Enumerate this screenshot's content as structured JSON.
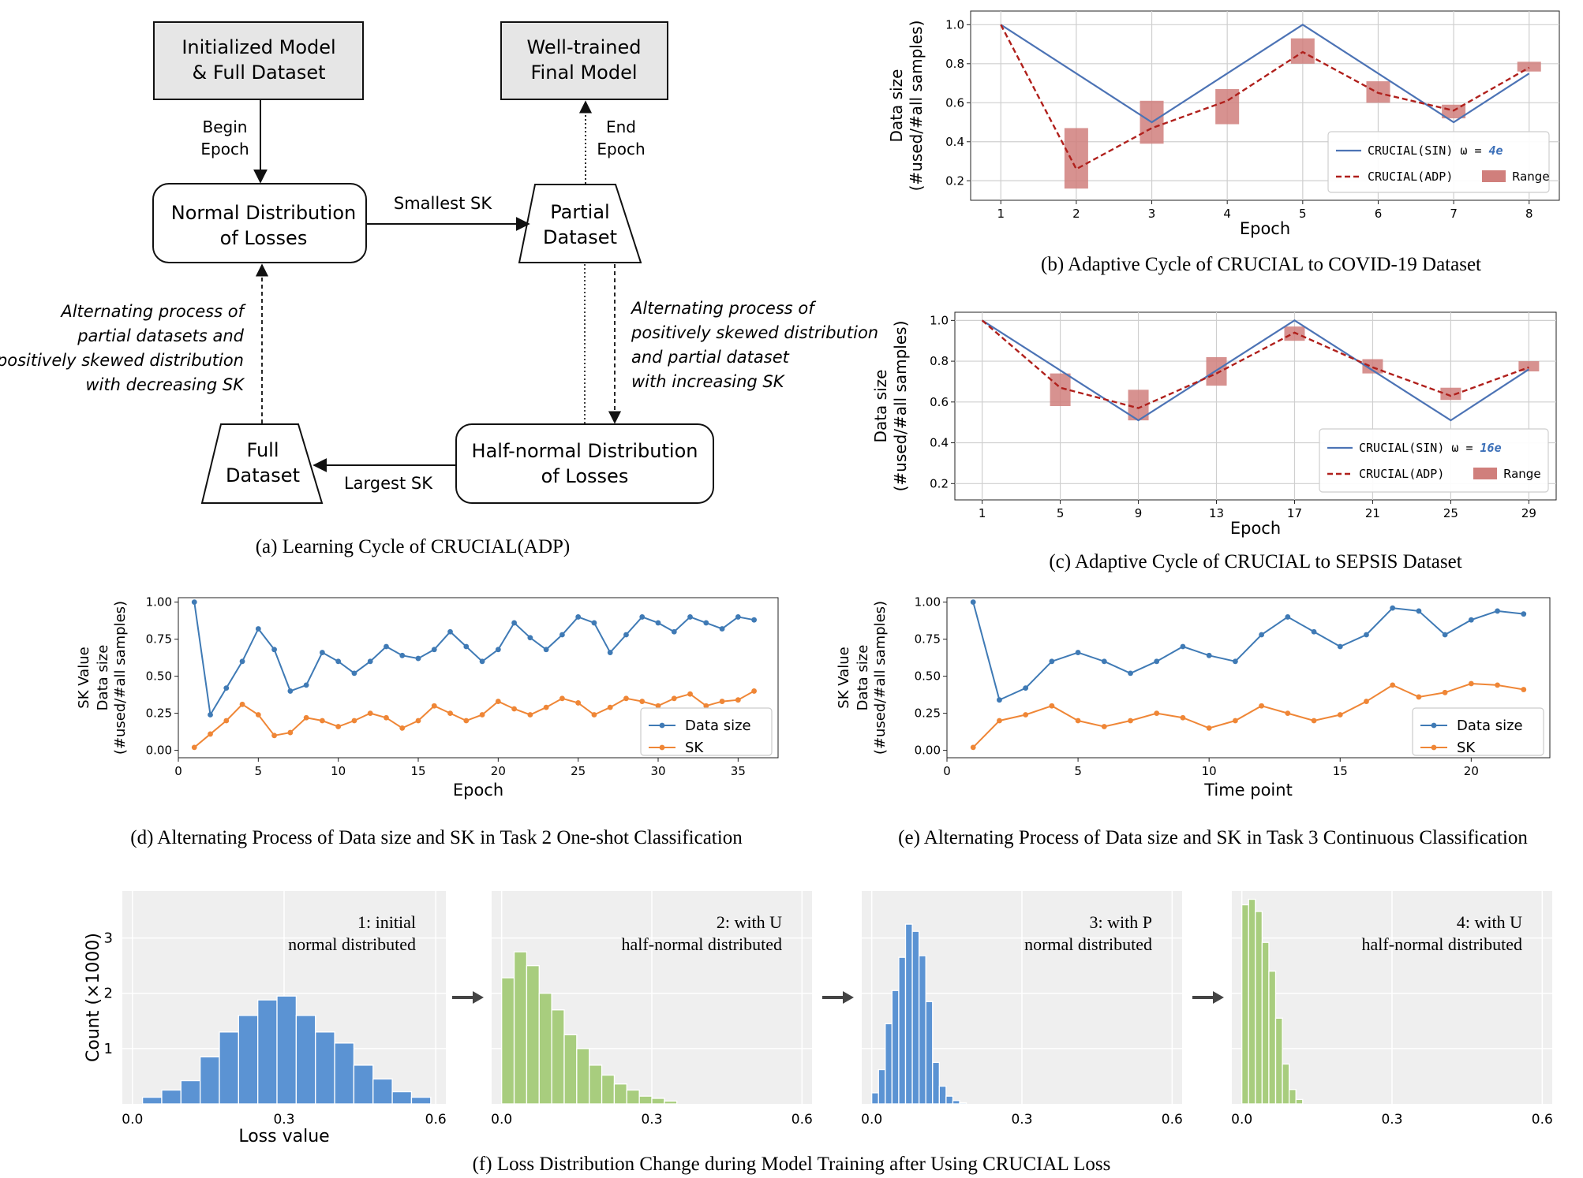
{
  "panel_a": {
    "boxes": {
      "init": [
        "Initialized Model",
        "& Full Dataset"
      ],
      "final": [
        "Well-trained",
        "Final Model"
      ],
      "normal": [
        "Normal Distribution",
        "of Losses"
      ],
      "partial": [
        "Partial",
        "Dataset"
      ],
      "full": [
        "Full",
        "Dataset"
      ],
      "half": [
        "Half-normal Distribution",
        "of Losses"
      ]
    },
    "labels": {
      "begin": [
        "Begin",
        "Epoch"
      ],
      "end": [
        "End",
        "Epoch"
      ],
      "smallest": "Smallest SK",
      "largest": "Largest SK",
      "left_alt": [
        "Alternating process of",
        "partial datasets and",
        "positively skewed distribution",
        "with decreasing SK"
      ],
      "right_alt": [
        "Alternating process of",
        "positively skewed distribution",
        "and partial dataset",
        "with increasing SK"
      ]
    },
    "caption": "(a) Learning Cycle of CRUCIAL(ADP)"
  },
  "chart_data": [
    {
      "id": "b",
      "type": "line",
      "caption": "(b) Adaptive Cycle of CRUCIAL to COVID-19 Dataset",
      "xlabel": "Epoch",
      "ylabel": [
        "Data size",
        "(#used/#all samples)"
      ],
      "xlim": [
        0.6,
        8.4
      ],
      "ylim": [
        0.1,
        1.07
      ],
      "xticks": [
        1,
        2,
        3,
        4,
        5,
        6,
        7,
        8
      ],
      "yticks": [
        0.2,
        0.4,
        0.6,
        0.8,
        1.0
      ],
      "ytick_labels": [
        "0.2",
        "0.4",
        "0.6",
        "0.8",
        "1.0"
      ],
      "sin": {
        "x": [
          1,
          3,
          5,
          7,
          8
        ],
        "y": [
          1.0,
          0.5,
          1.0,
          0.5,
          0.75
        ]
      },
      "adp": {
        "x": [
          1,
          2,
          3,
          4,
          5,
          6,
          7,
          8
        ],
        "y": [
          1.0,
          0.26,
          0.47,
          0.61,
          0.86,
          0.65,
          0.56,
          0.78
        ]
      },
      "range": {
        "x": [
          2,
          3,
          4,
          5,
          6,
          7,
          8
        ],
        "low": [
          0.16,
          0.39,
          0.49,
          0.8,
          0.6,
          0.52,
          0.76
        ],
        "high": [
          0.47,
          0.61,
          0.67,
          0.93,
          0.71,
          0.59,
          0.81
        ]
      },
      "legend": {
        "sin": "CRUCIAL(SIN) ω = ",
        "omega": "4e",
        "adp": "CRUCIAL(ADP)",
        "range": "Range"
      }
    },
    {
      "id": "c",
      "type": "line",
      "caption": "(c) Adaptive Cycle of CRUCIAL to SEPSIS Dataset",
      "xlabel": "Epoch",
      "ylabel": [
        "Data size",
        "(#used/#all samples)"
      ],
      "xlim": [
        -0.4,
        30.4
      ],
      "ylim": [
        0.12,
        1.04
      ],
      "xticks": [
        1,
        5,
        9,
        13,
        17,
        21,
        25,
        29
      ],
      "yticks": [
        0.2,
        0.4,
        0.6,
        0.8,
        1.0
      ],
      "ytick_labels": [
        "0.2",
        "0.4",
        "0.6",
        "0.8",
        "1.0"
      ],
      "sin": {
        "x": [
          1,
          9,
          17,
          25,
          29
        ],
        "y": [
          1.0,
          0.51,
          1.0,
          0.51,
          0.76
        ]
      },
      "adp": {
        "x": [
          1,
          5,
          9,
          13,
          17,
          21,
          25,
          29
        ],
        "y": [
          1.0,
          0.67,
          0.57,
          0.74,
          0.94,
          0.77,
          0.63,
          0.77
        ]
      },
      "range": {
        "x": [
          5,
          9,
          13,
          17,
          21,
          25,
          29
        ],
        "low": [
          0.58,
          0.51,
          0.68,
          0.9,
          0.74,
          0.61,
          0.75
        ],
        "high": [
          0.74,
          0.66,
          0.82,
          0.97,
          0.81,
          0.67,
          0.8
        ]
      },
      "legend": {
        "sin": "CRUCIAL(SIN) ω = ",
        "omega": "16e",
        "adp": "CRUCIAL(ADP)",
        "range": "Range"
      }
    },
    {
      "id": "d",
      "type": "line",
      "caption": "(d) Alternating Process of Data size and SK in Task 2 One-shot Classification",
      "xlabel": "Epoch",
      "ylabel": [
        "SK Value",
        "Data size",
        "(#used/#all samples)"
      ],
      "xlim": [
        0,
        37.5
      ],
      "ylim": [
        -0.05,
        1.03
      ],
      "xticks": [
        0,
        5,
        10,
        15,
        20,
        25,
        30,
        35
      ],
      "yticks": [
        0.0,
        0.25,
        0.5,
        0.75,
        1.0
      ],
      "ytick_labels": [
        "0.00",
        "0.25",
        "0.50",
        "0.75",
        "1.00"
      ],
      "x": [
        1,
        2,
        3,
        4,
        5,
        6,
        7,
        8,
        9,
        10,
        11,
        12,
        13,
        14,
        15,
        16,
        17,
        18,
        19,
        20,
        21,
        22,
        23,
        24,
        25,
        26,
        27,
        28,
        29,
        30,
        31,
        32,
        33,
        34,
        35,
        36
      ],
      "series": [
        {
          "name": "Data size",
          "color": "#3f7ab5",
          "values": [
            1.0,
            0.24,
            0.42,
            0.6,
            0.82,
            0.68,
            0.4,
            0.44,
            0.66,
            0.6,
            0.52,
            0.6,
            0.7,
            0.64,
            0.62,
            0.68,
            0.8,
            0.7,
            0.6,
            0.68,
            0.86,
            0.76,
            0.68,
            0.78,
            0.9,
            0.86,
            0.66,
            0.78,
            0.9,
            0.86,
            0.8,
            0.9,
            0.86,
            0.82,
            0.9,
            0.88
          ]
        },
        {
          "name": "SK",
          "color": "#ef8636",
          "values": [
            0.02,
            0.11,
            0.2,
            0.31,
            0.24,
            0.1,
            0.12,
            0.22,
            0.2,
            0.16,
            0.2,
            0.25,
            0.22,
            0.15,
            0.2,
            0.3,
            0.25,
            0.2,
            0.24,
            0.33,
            0.28,
            0.24,
            0.29,
            0.35,
            0.32,
            0.24,
            0.29,
            0.35,
            0.33,
            0.3,
            0.35,
            0.38,
            0.3,
            0.33,
            0.34,
            0.4
          ]
        }
      ]
    },
    {
      "id": "e",
      "type": "line",
      "caption": "(e) Alternating Process of Data size and SK in Task 3 Continuous Classification",
      "xlabel": "Time point",
      "ylabel": [
        "SK Value",
        "Data size",
        "(#used/#all samples)"
      ],
      "xlim": [
        0,
        23
      ],
      "ylim": [
        -0.05,
        1.03
      ],
      "xticks": [
        0,
        5,
        10,
        15,
        20
      ],
      "yticks": [
        0.0,
        0.25,
        0.5,
        0.75,
        1.0
      ],
      "ytick_labels": [
        "0.00",
        "0.25",
        "0.50",
        "0.75",
        "1.00"
      ],
      "x": [
        1,
        2,
        3,
        4,
        5,
        6,
        7,
        8,
        9,
        10,
        11,
        12,
        13,
        14,
        15,
        16,
        17,
        18,
        19,
        20,
        21,
        22
      ],
      "series": [
        {
          "name": "Data size",
          "color": "#3f7ab5",
          "values": [
            1.0,
            0.34,
            0.42,
            0.6,
            0.66,
            0.6,
            0.52,
            0.6,
            0.7,
            0.64,
            0.6,
            0.78,
            0.9,
            0.8,
            0.7,
            0.78,
            0.96,
            0.94,
            0.78,
            0.88,
            0.94,
            0.92
          ]
        },
        {
          "name": "SK",
          "color": "#ef8636",
          "values": [
            0.02,
            0.2,
            0.24,
            0.3,
            0.2,
            0.16,
            0.2,
            0.25,
            0.22,
            0.15,
            0.2,
            0.3,
            0.25,
            0.2,
            0.24,
            0.33,
            0.44,
            0.36,
            0.39,
            0.45,
            0.44,
            0.41
          ]
        }
      ]
    },
    {
      "id": "f",
      "type": "bar",
      "caption": "(f) Loss Distribution Change during Model Training after Using CRUCIAL Loss",
      "xlabel": "Loss value",
      "ylabel": "Count (×1000)",
      "xlim": [
        -0.02,
        0.62
      ],
      "ylim": [
        0,
        3.85
      ],
      "xticks": [
        0.0,
        0.3,
        0.6
      ],
      "xtick_labels": [
        "0.0",
        "0.3",
        "0.6"
      ],
      "yticks": [
        1,
        2,
        3
      ],
      "ytick_labels": [
        "1",
        "2",
        "3"
      ],
      "panels": [
        {
          "label": [
            "1: initial",
            "normal distributed"
          ],
          "color": "#5b93d3",
          "bin_start": 0.02,
          "bin_width": 0.038,
          "counts": [
            0.12,
            0.25,
            0.42,
            0.85,
            1.3,
            1.6,
            1.88,
            1.95,
            1.6,
            1.3,
            1.1,
            0.7,
            0.45,
            0.22,
            0.12
          ]
        },
        {
          "label": [
            "2: with U",
            "half-normal distributed"
          ],
          "color": "#a8cd7e",
          "bin_start": 0.0,
          "bin_width": 0.025,
          "counts": [
            2.28,
            2.75,
            2.5,
            2.0,
            1.7,
            1.25,
            1.0,
            0.7,
            0.52,
            0.36,
            0.25,
            0.14,
            0.1,
            0.05
          ]
        },
        {
          "label": [
            "3: with P",
            "normal distributed"
          ],
          "color": "#5b93d3",
          "bin_start": 0.0,
          "bin_width": 0.0135,
          "counts": [
            0.2,
            0.62,
            1.45,
            2.05,
            2.65,
            3.25,
            3.12,
            2.68,
            1.85,
            0.75,
            0.32,
            0.14,
            0.06,
            0.02
          ]
        },
        {
          "label": [
            "4: with U",
            "half-normal distributed"
          ],
          "color": "#a8cd7e",
          "bin_start": 0.0,
          "bin_width": 0.0135,
          "counts": [
            3.6,
            3.7,
            3.48,
            2.92,
            2.4,
            1.55,
            0.72,
            0.26,
            0.08
          ]
        }
      ]
    }
  ]
}
